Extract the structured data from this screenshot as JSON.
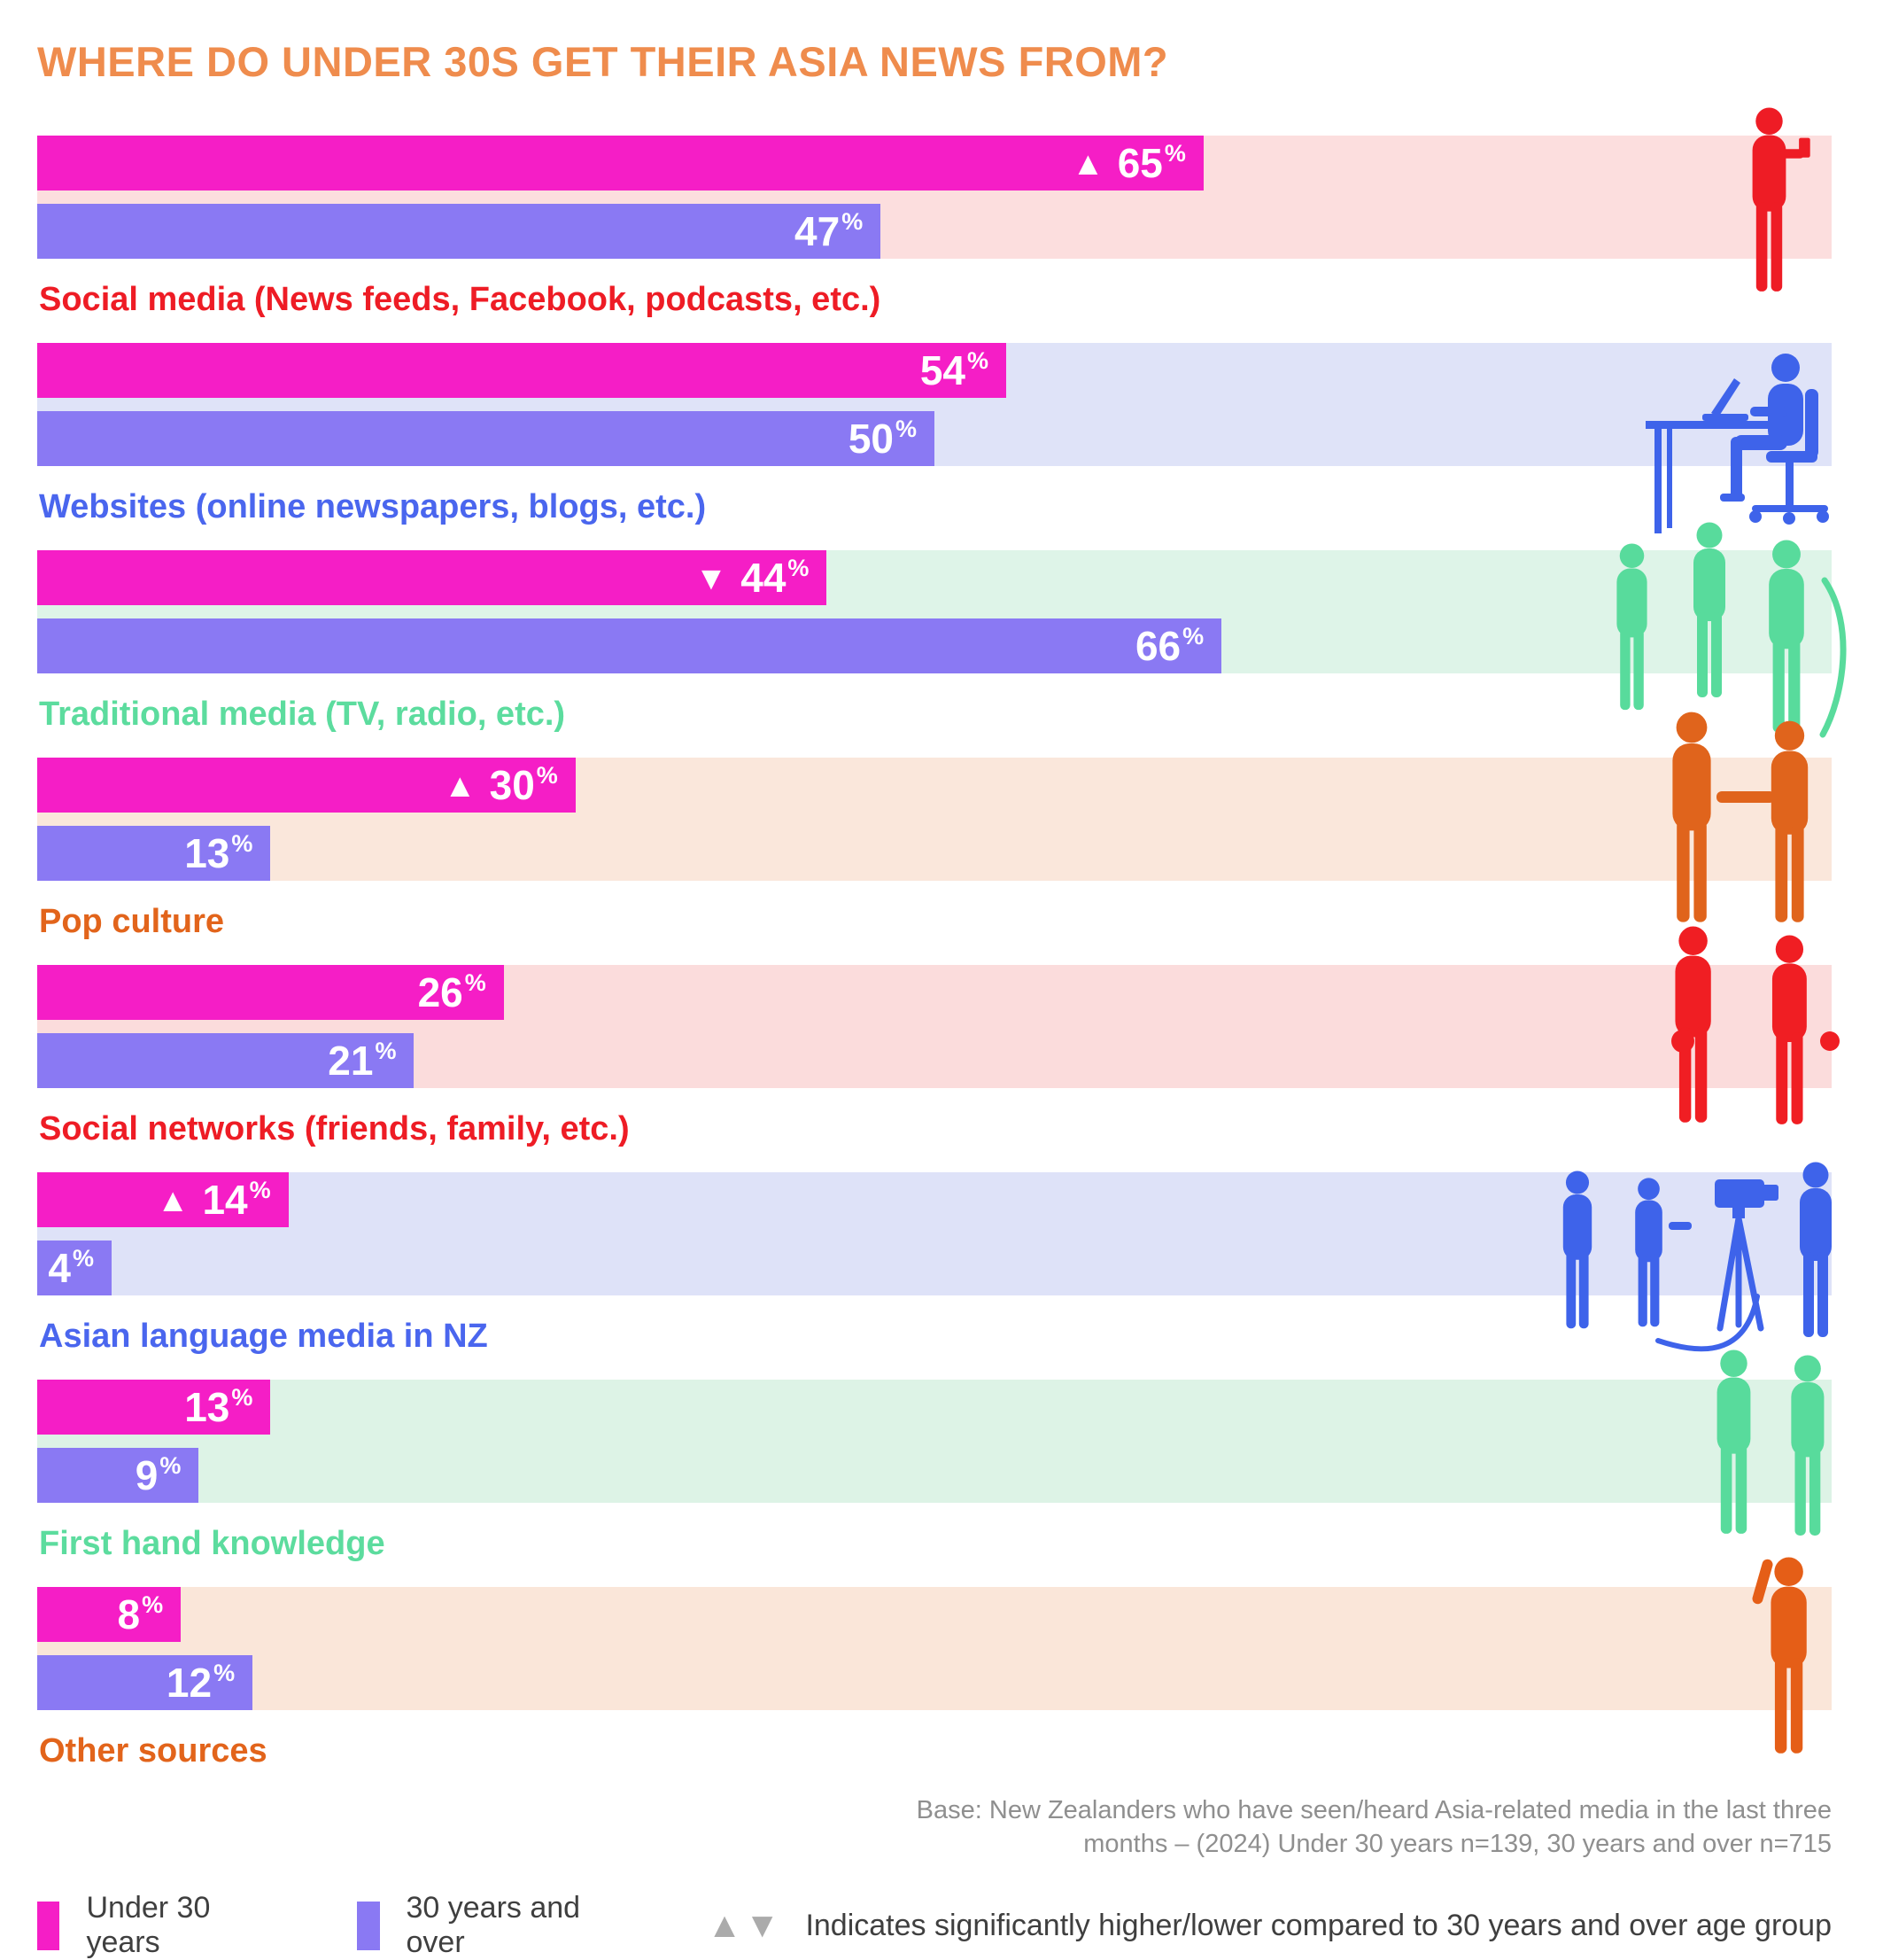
{
  "header": {
    "title": "WHERE DO UNDER 30S GET THEIR ASIA NEWS FROM?",
    "title_color": "#EF8C4D"
  },
  "unit": "%",
  "chart_data": {
    "type": "bar",
    "orientation": "horizontal",
    "title": "WHERE DO UNDER 30S GET THEIR ASIA NEWS FROM?",
    "unit": "%",
    "xlim": [
      0,
      100
    ],
    "grid": false,
    "legend_position": "bottom",
    "categories": [
      "Social media (News feeds, Facebook, podcasts, etc.)",
      "Websites (online newspapers, blogs, etc.)",
      "Traditional media (TV, radio, etc.)",
      "Pop culture",
      "Social networks (friends, family, etc.)",
      "Asian language media in NZ",
      "First hand knowledge",
      "Other sources"
    ],
    "series": [
      {
        "name": "Under 30 years",
        "color": "#F51EC6",
        "values": [
          65,
          54,
          44,
          30,
          26,
          14,
          13,
          8
        ],
        "significance_vs_other_group": [
          "higher",
          null,
          "lower",
          "higher",
          null,
          "higher",
          null,
          null
        ]
      },
      {
        "name": "30 years and over",
        "color": "#8A79F3",
        "values": [
          47,
          50,
          66,
          13,
          21,
          4,
          9,
          12
        ],
        "significance_vs_other_group": [
          null,
          null,
          null,
          null,
          null,
          null,
          null,
          null
        ]
      }
    ]
  },
  "groups": [
    {
      "label": "Social media (News feeds, Facebook, podcasts, etc.)",
      "label_color": "#EE1C25",
      "band_color": "#FCDEDE",
      "icon_color": "#EE1C25",
      "under30": 65,
      "over30": 47,
      "marker": "▲"
    },
    {
      "label": "Websites (online newspapers, blogs, etc.)",
      "label_color": "#4A66EE",
      "band_color": "#DFE3F8",
      "icon_color": "#3E63EA",
      "under30": 54,
      "over30": 50,
      "marker": ""
    },
    {
      "label": "Traditional media (TV, radio, etc.)",
      "label_color": "#5CDC9E",
      "band_color": "#DEF4E8",
      "icon_color": "#58DB9C",
      "under30": 44,
      "over30": 66,
      "marker": "▼"
    },
    {
      "label": "Pop culture",
      "label_color": "#E2641B",
      "band_color": "#FAE7DB",
      "icon_color": "#E0641C",
      "under30": 30,
      "over30": 13,
      "marker": "▲"
    },
    {
      "label": "Social networks (friends, family, etc.)",
      "label_color": "#EE1C25",
      "band_color": "#FBDCDC",
      "icon_color": "#F01E23",
      "under30": 26,
      "over30": 21,
      "marker": ""
    },
    {
      "label": "Asian language media in NZ",
      "label_color": "#4A66EE",
      "band_color": "#DEE2F8",
      "icon_color": "#3E63EA",
      "under30": 14,
      "over30": 4,
      "marker": "▲"
    },
    {
      "label": "First hand knowledge",
      "label_color": "#5CDC9E",
      "band_color": "#DDF3E6",
      "icon_color": "#58DB9C",
      "under30": 13,
      "over30": 9,
      "marker": ""
    },
    {
      "label": "Other sources",
      "label_color": "#E2641B",
      "band_color": "#FAE6D9",
      "icon_color": "#E55E17",
      "under30": 8,
      "over30": 12,
      "marker": ""
    }
  ],
  "footer": {
    "base_line1": "Base: New Zealanders who have seen/heard Asia-related media in the last three",
    "base_line2": "months – (2024) Under 30 years n=139, 30 years and over n=715"
  },
  "legend": {
    "items": [
      {
        "label": "Under 30 years",
        "color": "#F51EC6"
      },
      {
        "label": "30 years and over",
        "color": "#8A79F3"
      }
    ],
    "triangles": "▲▼",
    "note": "Indicates significantly higher/lower compared to 30 years and over age group"
  }
}
